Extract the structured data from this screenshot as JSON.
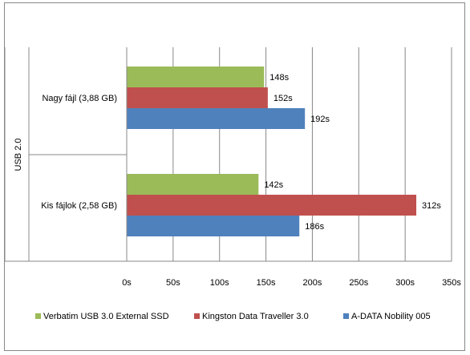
{
  "chart_data": {
    "type": "bar",
    "orientation": "horizontal",
    "group_label": "USB 2.0",
    "categories": [
      "Nagy fájl (3,88 GB)",
      "Kis fájlok (2,58 GB)"
    ],
    "series": [
      {
        "name": "Verbatim USB 3.0 External SSD",
        "color": "#9BBB59",
        "values": [
          148,
          142
        ],
        "labels": [
          "148s",
          "142s"
        ]
      },
      {
        "name": "Kingston Data Traveller 3.0",
        "color": "#C0504D",
        "values": [
          152,
          312
        ],
        "labels": [
          "152s",
          "312s"
        ]
      },
      {
        "name": "A-DATA Nobility 005",
        "color": "#4F81BD",
        "values": [
          192,
          186
        ],
        "labels": [
          "192s",
          "186s"
        ]
      }
    ],
    "xlim": [
      0,
      350
    ],
    "xticks": [
      0,
      50,
      100,
      150,
      200,
      250,
      300,
      350
    ],
    "xtick_labels": [
      "0s",
      "50s",
      "100s",
      "150s",
      "200s",
      "250s",
      "300s",
      "350s"
    ],
    "grid": true,
    "legend_position": "bottom"
  }
}
